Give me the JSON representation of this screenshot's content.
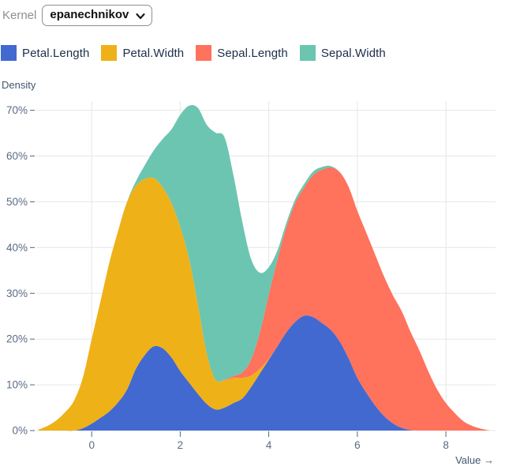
{
  "controls": {
    "kernel_label": "Kernel",
    "kernel_value": "epanechnikov"
  },
  "legend": [
    {
      "label": "Petal.Length",
      "color": "#4269d0"
    },
    {
      "label": "Petal.Width",
      "color": "#efb118"
    },
    {
      "label": "Sepal.Length",
      "color": "#ff725c"
    },
    {
      "label": "Sepal.Width",
      "color": "#6cc5b0"
    }
  ],
  "axes": {
    "y_title": "Density",
    "x_title": "Value →",
    "x_ticks": [
      0,
      2,
      4,
      6,
      8
    ],
    "y_ticks": [
      0,
      10,
      20,
      30,
      40,
      50,
      60,
      70
    ],
    "y_tick_suffix": "%"
  },
  "chart_data": {
    "type": "area",
    "stacked": true,
    "xlabel": "Value",
    "ylabel": "Density",
    "x_domain": [
      -1.25,
      9.12
    ],
    "y_domain": [
      0,
      72
    ],
    "grid": true,
    "legend_position": "top",
    "x": [
      -1.2,
      -1.0,
      -0.8,
      -0.6,
      -0.4,
      -0.2,
      0.0,
      0.2,
      0.4,
      0.6,
      0.8,
      1.0,
      1.2,
      1.4,
      1.6,
      1.8,
      2.0,
      2.2,
      2.4,
      2.6,
      2.8,
      3.0,
      3.2,
      3.4,
      3.6,
      3.8,
      4.0,
      4.2,
      4.4,
      4.6,
      4.8,
      5.0,
      5.2,
      5.4,
      5.6,
      5.8,
      6.0,
      6.2,
      6.4,
      6.6,
      6.8,
      7.0,
      7.2,
      7.4,
      7.6,
      7.8,
      8.0,
      8.2,
      8.4,
      8.6,
      8.8,
      9.0
    ],
    "series": [
      {
        "name": "Petal.Length",
        "color": "#4269d0",
        "values": [
          0,
          0,
          0,
          0,
          0,
          0.5,
          1.5,
          2.8,
          4.2,
          6.2,
          9,
          13.5,
          16.5,
          18.4,
          18,
          16,
          13,
          10.5,
          8,
          5.8,
          4.6,
          5,
          6,
          7,
          9.5,
          12.5,
          15.5,
          18.5,
          21.5,
          23.8,
          25.1,
          24.8,
          23.5,
          22,
          19.5,
          15.8,
          11.5,
          8.3,
          5.5,
          3.2,
          1.6,
          0.6,
          0.1,
          0,
          0,
          0,
          0,
          0,
          0,
          0,
          0,
          0
        ]
      },
      {
        "name": "Petal.Width",
        "color": "#efb118",
        "values": [
          0.2,
          1,
          2.2,
          4,
          6.5,
          11,
          18.5,
          25.5,
          32.5,
          37.5,
          41,
          40,
          38.5,
          36.8,
          35.2,
          33.8,
          31.5,
          27,
          19.5,
          11,
          6.5,
          6,
          5.5,
          4.5,
          2.5,
          1,
          0.2,
          0,
          0,
          0,
          0,
          0,
          0,
          0,
          0,
          0,
          0,
          0,
          0,
          0,
          0,
          0,
          0,
          0,
          0,
          0,
          0,
          0,
          0,
          0,
          0,
          0
        ]
      },
      {
        "name": "Sepal.Length",
        "color": "#ff725c",
        "values": [
          0,
          0,
          0,
          0,
          0,
          0,
          0,
          0,
          0,
          0,
          0,
          0,
          0,
          0,
          0,
          0,
          0,
          0,
          0,
          0,
          0,
          0.1,
          0.4,
          1.2,
          3.5,
          8,
          14,
          19,
          23,
          26,
          28,
          31,
          33.5,
          35.5,
          37,
          37.5,
          36.5,
          35,
          33,
          30.5,
          28,
          25.5,
          21.5,
          17.5,
          13,
          9,
          6,
          3.8,
          2,
          1,
          0.4,
          0
        ]
      },
      {
        "name": "Sepal.Width",
        "color": "#6cc5b0",
        "values": [
          0,
          0,
          0,
          0,
          0,
          0,
          0,
          0,
          0,
          0,
          0,
          1,
          3,
          6,
          10.5,
          16,
          24.5,
          33.5,
          43,
          50,
          54,
          53,
          44,
          33,
          22,
          13,
          6,
          2,
          1,
          0.8,
          0.8,
          0.8,
          0.6,
          0.3,
          0,
          0,
          0,
          0,
          0,
          0,
          0,
          0,
          0,
          0,
          0,
          0,
          0,
          0,
          0,
          0,
          0,
          0
        ]
      }
    ]
  }
}
